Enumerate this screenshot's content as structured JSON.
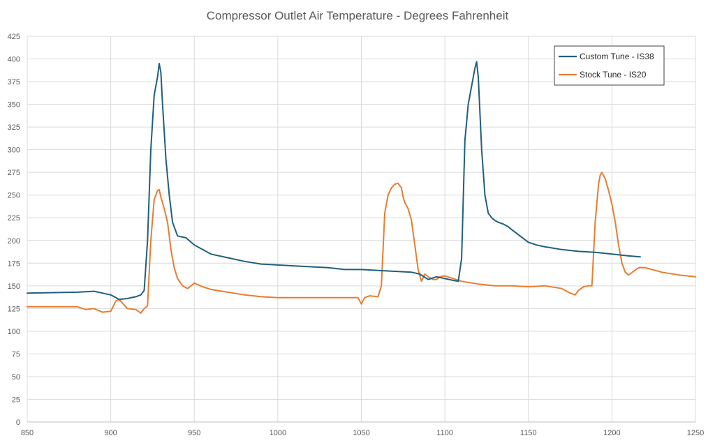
{
  "chart_data": {
    "type": "line",
    "title": "Compressor Outlet Air Temperature - Degrees Fahrenheit",
    "xlabel": "",
    "ylabel": "",
    "xlim": [
      850,
      1250
    ],
    "ylim": [
      0,
      425
    ],
    "x_ticks": [
      850,
      900,
      950,
      1000,
      1050,
      1100,
      1150,
      1200,
      1250
    ],
    "y_ticks": [
      0,
      25,
      50,
      75,
      100,
      125,
      150,
      175,
      200,
      225,
      250,
      275,
      300,
      325,
      350,
      375,
      400,
      425
    ],
    "grid": true,
    "legend_position": "top-right",
    "series": [
      {
        "name": "Custom Tune - IS38",
        "color": "#1f5f7d",
        "x": [
          850,
          880,
          890,
          895,
          900,
          905,
          910,
          915,
          918,
          920,
          922,
          924,
          926,
          928,
          929,
          930,
          931,
          933,
          935,
          937,
          940,
          945,
          950,
          960,
          970,
          980,
          990,
          1000,
          1010,
          1020,
          1030,
          1040,
          1050,
          1060,
          1070,
          1080,
          1085,
          1090,
          1095,
          1100,
          1105,
          1108,
          1110,
          1112,
          1114,
          1116,
          1118,
          1119,
          1120,
          1122,
          1124,
          1126,
          1128,
          1130,
          1132,
          1135,
          1138,
          1140,
          1145,
          1150,
          1155,
          1160,
          1170,
          1180,
          1190,
          1200,
          1210,
          1217
        ],
        "y": [
          142,
          143,
          144,
          142,
          140,
          135,
          136,
          138,
          140,
          145,
          200,
          300,
          360,
          380,
          395,
          385,
          350,
          290,
          250,
          220,
          205,
          203,
          195,
          185,
          181,
          177,
          174,
          173,
          172,
          171,
          170,
          168,
          168,
          167,
          166,
          165,
          163,
          157,
          160,
          158,
          156,
          155,
          180,
          310,
          350,
          370,
          390,
          397,
          380,
          300,
          250,
          230,
          225,
          222,
          220,
          218,
          215,
          212,
          205,
          198,
          195,
          193,
          190,
          188,
          187,
          185,
          183,
          182
        ]
      },
      {
        "name": "Stock Tune - IS20",
        "color": "#e97c30",
        "x": [
          850,
          870,
          880,
          885,
          890,
          895,
          900,
          903,
          905,
          910,
          915,
          918,
          920,
          922,
          924,
          926,
          928,
          929,
          930,
          932,
          934,
          936,
          938,
          940,
          943,
          946,
          950,
          955,
          960,
          970,
          980,
          990,
          1000,
          1010,
          1020,
          1030,
          1040,
          1048,
          1050,
          1052,
          1055,
          1060,
          1062,
          1064,
          1066,
          1068,
          1070,
          1072,
          1074,
          1075,
          1076,
          1078,
          1080,
          1082,
          1084,
          1086,
          1088,
          1090,
          1093,
          1095,
          1097,
          1100,
          1105,
          1110,
          1120,
          1130,
          1140,
          1150,
          1160,
          1170,
          1175,
          1178,
          1180,
          1183,
          1186,
          1188,
          1190,
          1192,
          1193,
          1194,
          1196,
          1198,
          1200,
          1202,
          1204,
          1206,
          1208,
          1210,
          1213,
          1216,
          1220,
          1230,
          1240,
          1250
        ],
        "y": [
          127,
          127,
          127,
          124,
          125,
          121,
          122,
          133,
          135,
          125,
          124,
          120,
          125,
          128,
          200,
          245,
          255,
          256,
          248,
          235,
          220,
          190,
          170,
          158,
          150,
          147,
          153,
          149,
          146,
          143,
          140,
          138,
          137,
          137,
          137,
          137,
          137,
          137,
          130,
          137,
          139,
          138,
          150,
          230,
          250,
          258,
          262,
          263,
          258,
          248,
          242,
          235,
          222,
          195,
          168,
          155,
          163,
          160,
          157,
          157,
          160,
          161,
          158,
          155,
          152,
          150,
          150,
          149,
          150,
          147,
          142,
          140,
          145,
          149,
          150,
          150,
          220,
          262,
          272,
          275,
          268,
          255,
          240,
          220,
          195,
          175,
          165,
          162,
          166,
          170,
          170,
          165,
          162,
          160
        ]
      }
    ]
  }
}
